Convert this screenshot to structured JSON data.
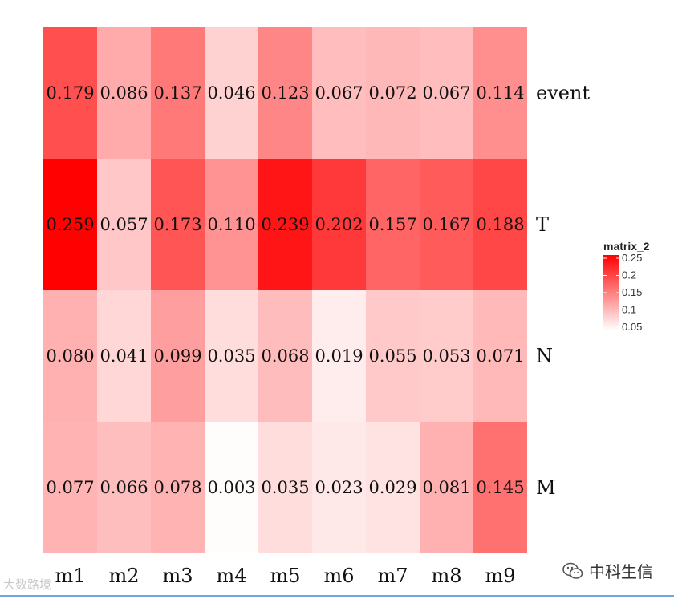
{
  "chart_data": {
    "type": "heatmap",
    "columns": [
      "m1",
      "m2",
      "m3",
      "m4",
      "m5",
      "m6",
      "m7",
      "m8",
      "m9"
    ],
    "rows": [
      "event",
      "T",
      "N",
      "M"
    ],
    "values": [
      [
        0.179,
        0.086,
        0.137,
        0.046,
        0.123,
        0.067,
        0.072,
        0.067,
        0.114
      ],
      [
        0.259,
        0.057,
        0.173,
        0.11,
        0.239,
        0.202,
        0.157,
        0.167,
        0.188
      ],
      [
        0.08,
        0.041,
        0.099,
        0.035,
        0.068,
        0.019,
        0.055,
        0.053,
        0.071
      ],
      [
        0.077,
        0.066,
        0.078,
        0.003,
        0.035,
        0.023,
        0.029,
        0.081,
        0.145
      ]
    ],
    "cell_labels": [
      [
        "0.179",
        "0.086",
        "0.137",
        "0.046",
        "0.123",
        "0.067",
        "0.072",
        "0.067",
        "0.114"
      ],
      [
        "0.259",
        "0.057",
        "0.173",
        "0.110",
        "0.239",
        "0.202",
        "0.157",
        "0.167",
        "0.188"
      ],
      [
        "0.080",
        "0.041",
        "0.099",
        "0.035",
        "0.068",
        "0.019",
        "0.055",
        "0.053",
        "0.071"
      ],
      [
        "0.077",
        "0.066",
        "0.078",
        "0.003",
        "0.035",
        "0.023",
        "0.029",
        "0.081",
        "0.145"
      ]
    ],
    "color_scale": {
      "low": "#ffffff",
      "high": "#ff0000",
      "domain": [
        0,
        0.26
      ]
    },
    "legend": {
      "title": "matrix_2",
      "ticks": [
        0.25,
        0.2,
        0.15,
        0.1,
        0.05
      ],
      "tick_labels": [
        "0.25",
        "0.2",
        "0.15",
        "0.1",
        "0.05"
      ],
      "range": [
        0.05,
        0.25
      ],
      "placement": "right"
    }
  },
  "watermarks": {
    "left": "大数路境",
    "right": "中科生信",
    "right_icon": "wechat-icon"
  },
  "colors": {
    "rule": "#6fa8dc"
  }
}
